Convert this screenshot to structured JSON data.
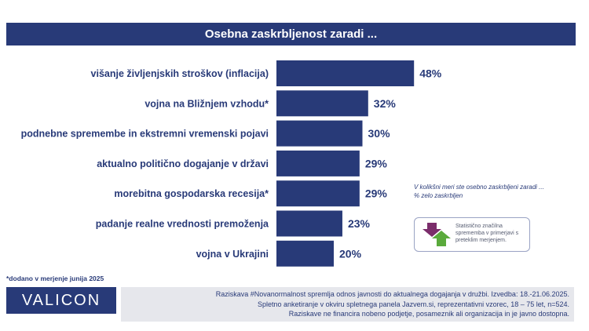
{
  "title": "Osebna zaskrbljenost zaradi ...",
  "chart_data": {
    "type": "bar",
    "orientation": "horizontal",
    "categories": [
      "višanje življenjskih stroškov (inflacija)",
      "vojna na Bližnjem vzhodu*",
      "podnebne spremembe in ekstremni vremenski pojavi",
      "aktualno politično dogajanje v državi",
      "morebitna gospodarska recesija*",
      "padanje realne vrednosti premoženja",
      "vojna v Ukrajini"
    ],
    "values": [
      48,
      32,
      30,
      29,
      29,
      23,
      20
    ],
    "value_labels": [
      "48%",
      "32%",
      "30%",
      "29%",
      "29%",
      "23%",
      "20%"
    ],
    "xlim": [
      0,
      100
    ],
    "grid": false,
    "bar_color": "#283a78"
  },
  "note": {
    "line1": "V kolikšni meri ste osebno zaskrbljeni zaradi ...",
    "line2": "% zelo zaskrbljen"
  },
  "legend": {
    "text": "Statistično značilna sprememba v primerjavi s preteklim merjenjem.",
    "down_color": "#7b2d6b",
    "up_color": "#5aaa3c"
  },
  "footnote": "*dodano v merjenje junija 2025",
  "logo": "VALICON",
  "source": {
    "line1": "Raziskava #Novanormalnost spremlja odnos javnosti do aktualnega dogajanja v družbi. Izvedba: 18.-21.06.2025.",
    "line2": "Spletno anketiranje v okviru spletnega panela Jazvem.si, reprezentativni vzorec, 18 – 75 let, n=524.",
    "line3": "Raziskave ne financira nobeno podjetje, posameznik ali organizacija in je javno dostopna."
  }
}
